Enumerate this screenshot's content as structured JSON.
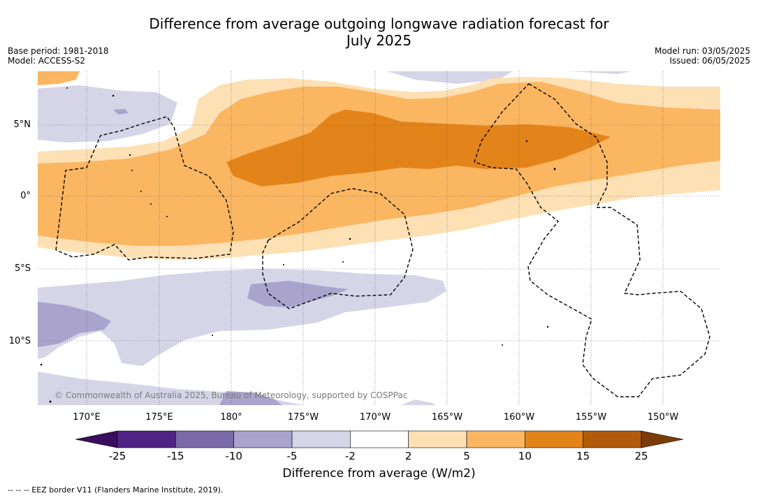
{
  "title_line1": "Difference from average outgoing longwave radiation forecast for",
  "title_line2": "July 2025",
  "base_period": "Base period: 1981-2018",
  "model": "Model: ACCESS-S2",
  "model_run": "Model run: 03/05/2025",
  "issued": "Issued: 06/05/2025",
  "lat_labels": [
    "5°N",
    "0°",
    "5°S",
    "10°S"
  ],
  "lon_labels": [
    "170°E",
    "175°E",
    "180°",
    "175°W",
    "170°W",
    "165°W",
    "160°W",
    "155°W",
    "150°W"
  ],
  "credit": "© Commonwealth of Australia 2025, Bureau of Meteorology, supported by COSPPac",
  "colorbar": {
    "ticks": [
      "-25",
      "-15",
      "-10",
      "-5",
      "-2",
      "2",
      "5",
      "10",
      "15",
      "25"
    ],
    "colors": [
      "#4f2385",
      "#7a6aa8",
      "#aaa3cc",
      "#d6d5e8",
      "#ffffff",
      "#fde0b4",
      "#fbb662",
      "#e3841a",
      "#b15b0a"
    ],
    "under_color": "#3a0e5e",
    "over_color": "#7a3d07",
    "label": "Difference from average (W/m2)"
  },
  "footer": "-- -- -- EEZ border V11 (Flanders Marine Institute, 2019)."
}
